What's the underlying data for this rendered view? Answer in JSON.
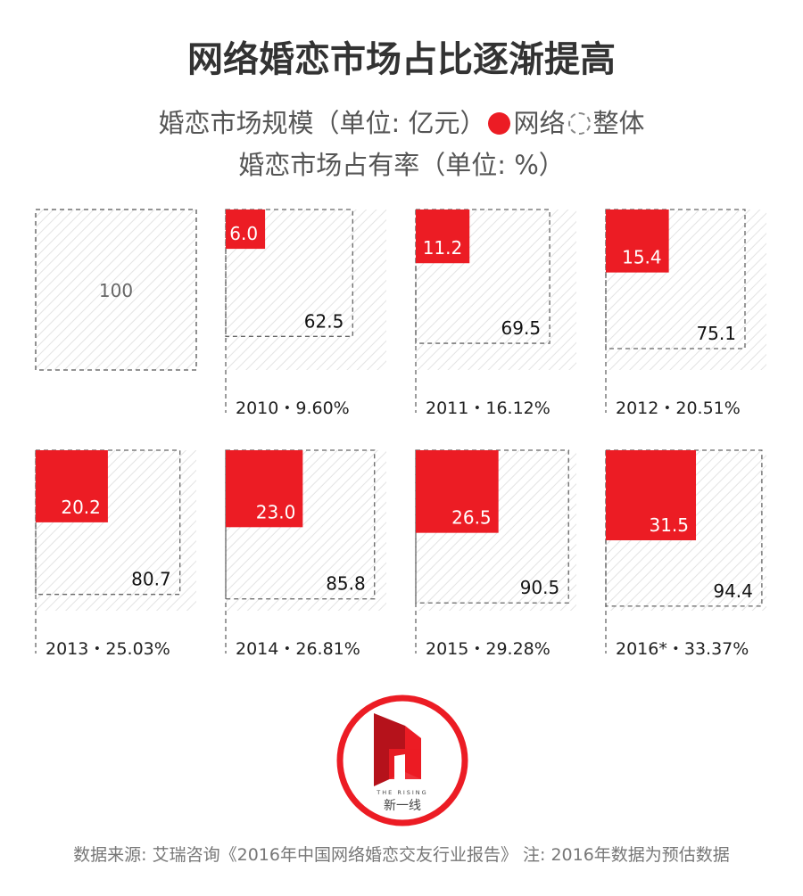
{
  "title": "网络婚恋市场占比逐渐提高",
  "legend": {
    "line1_text": "婚恋市场规模（单位: 亿元）",
    "online_label": "网络",
    "overall_label": "整体",
    "line2_text": "婚恋市场占有率（单位: %）"
  },
  "colors": {
    "online": "#ec1c24",
    "overall_border": "#666666",
    "hatch": "#e3e3e3"
  },
  "chart_data": {
    "type": "area",
    "reference": {
      "label": "100",
      "value": 100
    },
    "years": [
      "2010",
      "2011",
      "2012",
      "2013",
      "2014",
      "2015",
      "2016*"
    ],
    "online": [
      6.0,
      11.2,
      15.4,
      20.2,
      23.0,
      26.5,
      31.5
    ],
    "overall": [
      62.5,
      69.5,
      75.1,
      80.7,
      85.8,
      90.5,
      94.4
    ],
    "share_percent": [
      9.6,
      16.12,
      20.51,
      25.03,
      26.81,
      29.28,
      33.37
    ],
    "online_labels": [
      "6.0",
      "11.2",
      "15.4",
      "20.2",
      "23.0",
      "26.5",
      "31.5"
    ],
    "overall_labels": [
      "62.5",
      "69.5",
      "75.1",
      "80.7",
      "85.8",
      "90.5",
      "94.4"
    ],
    "year_labels": [
      "2010・9.60%",
      "2011・16.12%",
      "2012・20.51%",
      "2013・25.03%",
      "2014・26.81%",
      "2015・29.28%",
      "2016*・33.37%"
    ]
  },
  "logo": {
    "caption_en": "THE RISING",
    "caption_cn": "新一线"
  },
  "footnote": "数据来源: 艾瑞咨询《2016年中国网络婚恋交友行业报告》 注: 2016年数据为预估数据"
}
